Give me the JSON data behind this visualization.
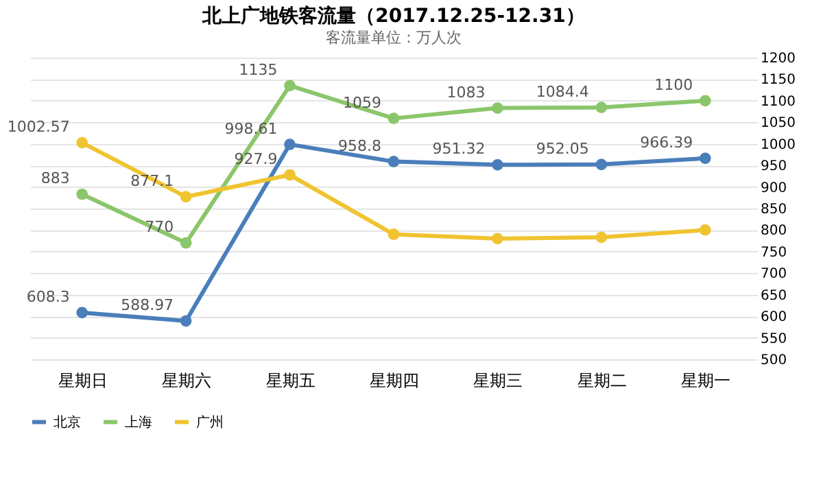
{
  "chart_data": {
    "type": "line",
    "title": "北上广地铁客流量（2017.12.25-12.31）",
    "subtitle": "客流量单位：万人次",
    "categories": [
      "星期日",
      "星期六",
      "星期五",
      "星期四",
      "星期三",
      "星期二",
      "星期一"
    ],
    "series": [
      {
        "name": "北京",
        "color": "#4a7ebb",
        "values": [
          608.3,
          588.97,
          998.61,
          958.8,
          951.32,
          952.05,
          966.39
        ],
        "value_labels": [
          "608.3",
          "588.97",
          "998.61",
          "958.8",
          "951.32",
          "952.05",
          "966.39"
        ]
      },
      {
        "name": "上海",
        "color": "#8cc66b",
        "values": [
          883,
          770,
          1135,
          1059,
          1083,
          1084.4,
          1100
        ],
        "value_labels": [
          "883",
          "770",
          "1135",
          "1059",
          "1083",
          "1084.4",
          "1100"
        ]
      },
      {
        "name": "广州",
        "color": "#f0c431",
        "values": [
          1002.57,
          877.1,
          927.9,
          790,
          780,
          783,
          800
        ],
        "value_labels": [
          "1002.57",
          "877.1",
          "927.9",
          null,
          null,
          null,
          null
        ]
      }
    ],
    "ylim": [
      500,
      1200
    ],
    "yticks": [
      500,
      550,
      600,
      650,
      700,
      750,
      800,
      850,
      900,
      950,
      1000,
      1050,
      1100,
      1150,
      1200
    ],
    "grid": "y",
    "legend": "bottom",
    "marker": "circle",
    "line_style": "solid"
  }
}
